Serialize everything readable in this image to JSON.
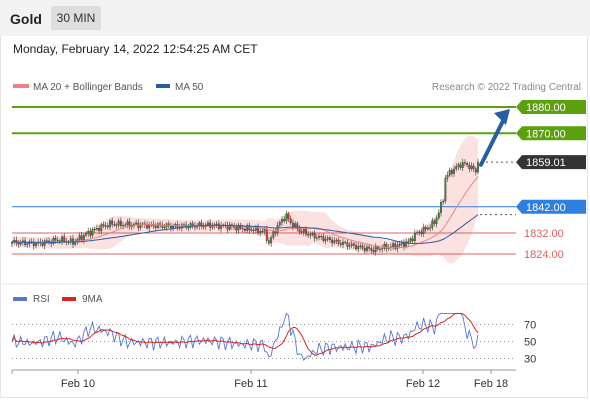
{
  "header": {
    "title": "Gold",
    "period": "30 MIN"
  },
  "datetime": "Monday, February 14, 2022 12:54:25 AM CET",
  "colors": {
    "resistance": "#5ba00f",
    "support_blue": "#2f7fe0",
    "support_red": "#e06060",
    "price_tag": "#333333",
    "ma20": "#f08080",
    "ma50": "#2a5d9f",
    "rsi": "#5577cc",
    "rsi_ma": "#dd2222",
    "arrow": "#2a5d9f"
  },
  "chart_data": [
    {
      "type": "candlestick",
      "legend": [
        {
          "name": "MA 20 + Bollinger Bands",
          "color": "#f08080"
        },
        {
          "name": "MA 50",
          "color": "#2a5d9f"
        }
      ],
      "copyright": "Research © 2022 Trading Central",
      "ylim": [
        1816,
        1890
      ],
      "x_ticks": [
        "Feb 10",
        "Feb 11",
        "Feb 12",
        "Feb 18"
      ],
      "levels": [
        {
          "value": 1880.0,
          "label": "1880.00",
          "kind": "resistance"
        },
        {
          "value": 1870.0,
          "label": "1870.00",
          "kind": "resistance"
        },
        {
          "value": 1859.01,
          "label": "1859.01",
          "kind": "last"
        },
        {
          "value": 1842.0,
          "label": "1842.00",
          "kind": "pivot"
        },
        {
          "value": 1832.0,
          "label": "1832.00",
          "kind": "support"
        },
        {
          "value": 1824.0,
          "label": "1824.00",
          "kind": "support"
        }
      ],
      "forecast_arrow": {
        "from": 1858,
        "to": 1880
      }
    },
    {
      "type": "line",
      "legend": [
        {
          "name": "RSI",
          "color": "#5577cc"
        },
        {
          "name": "9MA",
          "color": "#dd2222"
        }
      ],
      "ylim": [
        20,
        90
      ],
      "y_ticks": [
        70,
        50,
        30
      ]
    }
  ]
}
